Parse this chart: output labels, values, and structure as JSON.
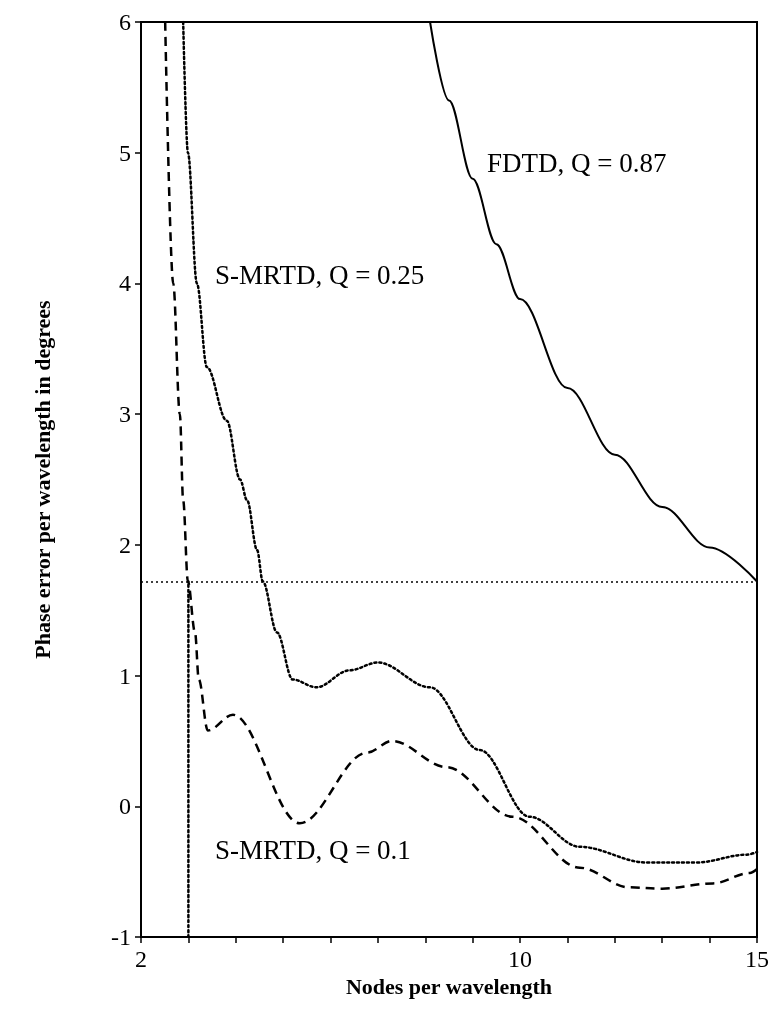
{
  "chart_data": {
    "type": "line",
    "xlabel": "Nodes per wavelength",
    "ylabel": "Phase error per wavelength in degrees",
    "xlim": [
      2,
      15
    ],
    "ylim": [
      -1,
      6
    ],
    "xticks": [
      2,
      {
        "value": 3,
        "label": null
      },
      {
        "value": 4,
        "label": null
      },
      {
        "value": 5,
        "label": null
      },
      {
        "value": 6,
        "label": null
      },
      {
        "value": 7,
        "label": null
      },
      {
        "value": 8,
        "label": null
      },
      {
        "value": 9,
        "label": null
      },
      10,
      {
        "value": 11,
        "label": null
      },
      {
        "value": 12,
        "label": null
      },
      {
        "value": 13,
        "label": null
      },
      {
        "value": 14,
        "label": null
      },
      15
    ],
    "yticks": [
      -1,
      0,
      1,
      2,
      3,
      4,
      5,
      6
    ],
    "grid": false,
    "legend": false,
    "marker": "none",
    "series": [
      {
        "color": "#000000",
        "line_style": "solid",
        "x": [
          8.1,
          8.5,
          9,
          9.5,
          10,
          11,
          12,
          13,
          14,
          15
        ],
        "values": [
          6,
          5.4,
          4.8,
          4.3,
          3.88,
          3.2,
          2.69,
          2.29,
          1.98,
          1.72
        ]
      },
      {
        "color": "#000000",
        "line_style": "dotted",
        "x": [
          2.89,
          2.99,
          3.18,
          3.39,
          3.81,
          4.09,
          4.24,
          4.45,
          4.57,
          4.87,
          5.2,
          5.7,
          6.4,
          7.0,
          8.1,
          9.15,
          10.2,
          11.26,
          12.67,
          13.73,
          14.78,
          15
        ],
        "values": [
          6,
          5,
          4,
          3.36,
          2.95,
          2.5,
          2.34,
          1.96,
          1.72,
          1.33,
          0.97,
          0.91,
          1.04,
          1.1,
          0.91,
          0.43,
          -0.08,
          -0.31,
          -0.43,
          -0.43,
          -0.37,
          -0.35
        ]
      },
      {
        "color": "#000000",
        "line_style": "dashed",
        "x": [
          2.51,
          2.68,
          2.82,
          2.89,
          2.99,
          3.14,
          3.22,
          3.41,
          3.94,
          5.35,
          6.77,
          7.3,
          8.45,
          9.84,
          11.26,
          12.3,
          13.0,
          14.07,
          14.85,
          15
        ],
        "values": [
          6,
          4,
          3,
          2.34,
          1.72,
          1.33,
          0.97,
          0.58,
          0.7,
          -0.13,
          0.41,
          0.5,
          0.3,
          -0.08,
          -0.47,
          -0.62,
          -0.63,
          -0.59,
          -0.51,
          -0.48
        ]
      },
      {
        "color": "#000000",
        "line_style": "dotted",
        "x": [
          3,
          3
        ],
        "values": [
          -1,
          1.72
        ]
      }
    ],
    "ref_lines": [
      {
        "axis": "y",
        "value": 1.72,
        "color": "#000000",
        "line_style": "dotted"
      }
    ],
    "annotations": [
      "FDTD, Q = 0.87",
      "S-MRTD, Q = 0.25",
      "S-MRTD, Q = 0.1"
    ]
  }
}
